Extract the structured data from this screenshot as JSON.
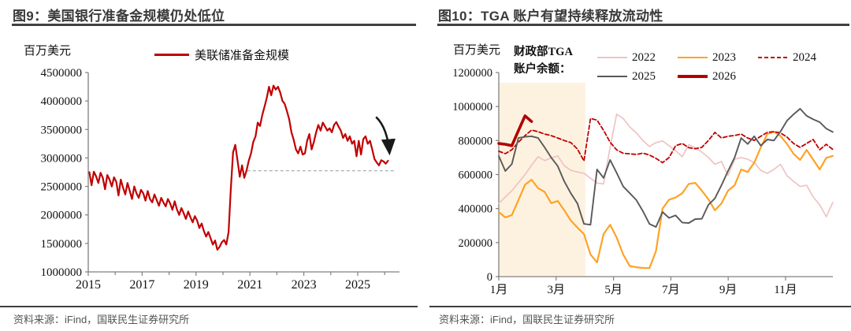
{
  "left_panel": {
    "title": "图9：美国银行准备金规模仍处低位",
    "unit_label": "百万美元",
    "legend": {
      "items": [
        {
          "label": "美联储准备金规模",
          "color": "#c00000"
        }
      ]
    },
    "source": "资料来源：iFind，国联民生证券研究所"
  },
  "right_panel": {
    "title": "图10：TGA 账户有望持续释放流动性",
    "unit_label": "百万美元",
    "legend": {
      "title_line1": "财政部TGA",
      "title_line2": "账户余额：",
      "items": [
        {
          "label": "2022",
          "color": "#efc3c3",
          "style": "solid"
        },
        {
          "label": "2023",
          "color": "#ffa226",
          "style": "solid"
        },
        {
          "label": "2024",
          "color": "#c00000",
          "style": "dashed"
        },
        {
          "label": "2025",
          "color": "#595959",
          "style": "solid"
        },
        {
          "label": "2026",
          "color": "#b20000",
          "style": "thick"
        }
      ]
    },
    "source": "资料来源：iFind，国联民生证券研究所"
  },
  "chart_data": [
    {
      "id": "fig9",
      "type": "line",
      "title": "美国银行准备金规模仍处低位",
      "ylabel": "百万美元",
      "axis_color": "#808080",
      "plot": {
        "l": 112,
        "r": 507,
        "t": 92,
        "b": 345
      },
      "font": {
        "y": 15,
        "x": 16
      },
      "x_range": [
        2015,
        2026.55
      ],
      "x_ticks": [
        {
          "v": 2015,
          "label": "2015"
        },
        {
          "v": 2017,
          "label": "2017"
        },
        {
          "v": 2019,
          "label": "2019"
        },
        {
          "v": 2021,
          "label": "2021"
        },
        {
          "v": 2023,
          "label": "2023"
        },
        {
          "v": 2025,
          "label": "2025"
        }
      ],
      "x_minor": [
        2016,
        2018,
        2020,
        2022,
        2024,
        2026
      ],
      "y_axis": {
        "min": 1000000,
        "max": 4500000,
        "step": 500000
      },
      "ref_line": {
        "y": 2775000,
        "x1": 2020.9,
        "x2": 2026.4,
        "color": "#a6a6a6"
      },
      "arrow": {
        "x1": 2025.68,
        "y1": 3720000,
        "x2": 2026.18,
        "y2": 3080000,
        "color": "#1a1a1a",
        "width": 2.6
      },
      "series": [
        {
          "name": "美联储准备金规模",
          "color": "#c00000",
          "width": 2.2,
          "scale": 1000,
          "x_start": 2015.04,
          "x_step": 0.08333,
          "values": [
            2750,
            2520,
            2760,
            2680,
            2560,
            2740,
            2650,
            2450,
            2700,
            2620,
            2500,
            2660,
            2580,
            2340,
            2620,
            2480,
            2360,
            2560,
            2420,
            2280,
            2500,
            2380,
            2300,
            2440,
            2380,
            2250,
            2420,
            2280,
            2220,
            2360,
            2260,
            2160,
            2300,
            2220,
            2150,
            2280,
            2200,
            2090,
            2240,
            2100,
            2000,
            2120,
            2030,
            1930,
            2060,
            1960,
            1870,
            1980,
            1900,
            1770,
            1850,
            1720,
            1620,
            1700,
            1590,
            1480,
            1550,
            1390,
            1440,
            1520,
            1560,
            1480,
            1700,
            2450,
            3100,
            3230,
            2950,
            2670,
            2870,
            2650,
            2780,
            2950,
            3080,
            3280,
            3380,
            3620,
            3560,
            3750,
            3900,
            4050,
            4250,
            4100,
            4270,
            4200,
            4250,
            4150,
            4000,
            3950,
            3820,
            3680,
            3450,
            3320,
            3150,
            3080,
            3200,
            3060,
            3080,
            3300,
            3420,
            3150,
            3280,
            3450,
            3580,
            3480,
            3620,
            3550,
            3480,
            3520,
            3450,
            3580,
            3630,
            3550,
            3480,
            3350,
            3420,
            3300,
            3380,
            3250,
            3300,
            3030,
            3300,
            3060,
            3330,
            3380,
            3250,
            3300,
            3150,
            2980,
            2920,
            2870,
            2960,
            2940,
            2900,
            2950
          ]
        }
      ]
    },
    {
      "id": "fig10",
      "type": "line",
      "title": "TGA 账户有望持续释放流动性",
      "ylabel": "百万美元",
      "axis_color": "#808080",
      "plot": {
        "l": 93,
        "r": 517,
        "t": 92,
        "b": 351
      },
      "font": {
        "y": 14.5,
        "x": 15
      },
      "x_range": [
        0,
        11.65
      ],
      "x_ticks": [
        {
          "v": 0,
          "label": "1月"
        },
        {
          "v": 2,
          "label": "3月"
        },
        {
          "v": 4,
          "label": "5月"
        },
        {
          "v": 6,
          "label": "7月"
        },
        {
          "v": 8,
          "label": "9月"
        },
        {
          "v": 10,
          "label": "11月"
        }
      ],
      "x_minor": [],
      "y_axis": {
        "min": 0,
        "max": 1200000,
        "step": 200000
      },
      "highlight": {
        "x1": 0,
        "x2": 3.02,
        "y1": 0,
        "y2": 1140000,
        "color": "#fdf2e0"
      },
      "series": [
        {
          "name": "2022",
          "color": "#efc3c3",
          "width": 1.7,
          "scale": 1000,
          "x_start": 0,
          "x_step": 0.2284,
          "values": [
            430,
            468,
            505,
            552,
            600,
            655,
            705,
            682,
            698,
            710,
            652,
            625,
            615,
            608,
            578,
            550,
            545,
            760,
            955,
            930,
            880,
            845,
            800,
            765,
            788,
            798,
            770,
            740,
            705,
            775,
            758,
            732,
            700,
            660,
            677,
            595,
            690,
            700,
            690,
            670,
            625,
            607,
            630,
            660,
            593,
            560,
            530,
            537,
            468,
            422,
            352,
            436
          ]
        },
        {
          "name": "2023",
          "color": "#ffa226",
          "width": 2.2,
          "scale": 1000,
          "x_start": 0,
          "x_step": 0.2284,
          "values": [
            380,
            348,
            362,
            450,
            540,
            570,
            520,
            498,
            432,
            445,
            390,
            330,
            288,
            250,
            130,
            84,
            250,
            305,
            230,
            130,
            62,
            55,
            51,
            50,
            150,
            400,
            452,
            465,
            490,
            545,
            551,
            505,
            455,
            390,
            430,
            505,
            537,
            630,
            615,
            670,
            760,
            838,
            852,
            828,
            780,
            722,
            686,
            745,
            688,
            630,
            698,
            710
          ]
        },
        {
          "name": "2024",
          "color": "#c00000",
          "width": 1.8,
          "dash": "5 3",
          "scale": 1000,
          "x_start": 0,
          "x_step": 0.2284,
          "values": [
            737,
            723,
            746,
            790,
            829,
            862,
            852,
            838,
            829,
            815,
            800,
            788,
            750,
            680,
            930,
            920,
            860,
            790,
            745,
            725,
            722,
            718,
            726,
            715,
            695,
            670,
            700,
            769,
            783,
            758,
            752,
            760,
            800,
            848,
            815,
            825,
            830,
            838,
            815,
            801,
            825,
            848,
            852,
            845,
            820,
            783,
            760,
            783,
            806,
            746,
            778,
            748
          ]
        },
        {
          "name": "2025",
          "color": "#595959",
          "width": 1.9,
          "scale": 1000,
          "x_start": 0,
          "x_step": 0.2284,
          "values": [
            709,
            621,
            662,
            815,
            822,
            825,
            815,
            760,
            700,
            650,
            560,
            490,
            430,
            310,
            305,
            630,
            580,
            686,
            610,
            530,
            490,
            450,
            385,
            310,
            292,
            380,
            345,
            360,
            318,
            315,
            338,
            340,
            422,
            460,
            537,
            621,
            700,
            815,
            780,
            825,
            770,
            806,
            800,
            852,
            917,
            954,
            987,
            945,
            925,
            908,
            870,
            850
          ]
        },
        {
          "name": "2026",
          "color": "#b20000",
          "width": 3.6,
          "scale": 1000,
          "x_start": 0,
          "x_step": 0.2284,
          "values": [
            783,
            778,
            770,
            858,
            945,
            912
          ]
        }
      ]
    }
  ]
}
